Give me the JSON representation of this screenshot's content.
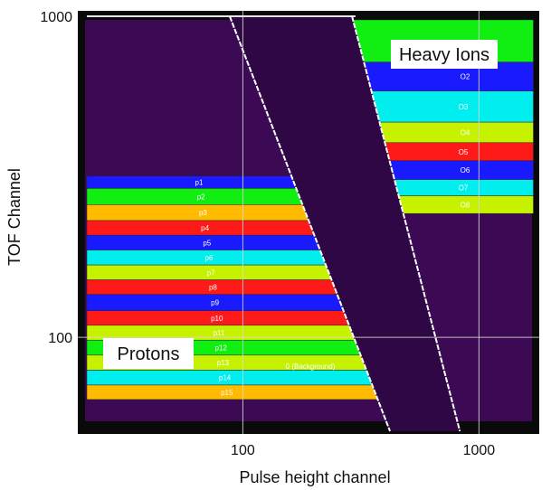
{
  "chart_data": {
    "type": "heatmap",
    "title": "",
    "xlabel": "Pulse height channel",
    "ylabel": "TOF Channel",
    "x_scale": "log",
    "y_scale": "log",
    "xlim": [
      20,
      1800
    ],
    "ylim": [
      50,
      1040
    ],
    "x_ticks": [
      {
        "value": 100,
        "label": "100"
      },
      {
        "value": 1000,
        "label": "1000"
      }
    ],
    "y_ticks": [
      {
        "value": 100,
        "label": "100"
      },
      {
        "value": 1000,
        "label": "1000"
      }
    ],
    "grid": true,
    "colors": {
      "background": "#3c0a55",
      "blue": "#1a1aff",
      "green": "#11ee11",
      "orange": "#ffbb00",
      "red": "#ff1a1a",
      "cyan": "#00eeee",
      "lime": "#c6f200",
      "line": "#ffffff"
    },
    "regions": [
      {
        "name": "Heavy Ions",
        "label": "Heavy Ions"
      },
      {
        "name": "Protons",
        "label": "Protons"
      }
    ],
    "background_label": "0 (Background)",
    "proton_bands": [
      {
        "label": "p1",
        "color": "blue",
        "tof_top": 318,
        "tof_bottom": 291,
        "ph_max": 178
      },
      {
        "label": "p2",
        "color": "green",
        "tof_top": 291,
        "tof_bottom": 259,
        "ph_max": 186
      },
      {
        "label": "p3",
        "color": "orange",
        "tof_top": 259,
        "tof_bottom": 231,
        "ph_max": 193
      },
      {
        "label": "p4",
        "color": "red",
        "tof_top": 231,
        "tof_bottom": 208,
        "ph_max": 202
      },
      {
        "label": "p5",
        "color": "blue",
        "tof_top": 208,
        "tof_bottom": 187,
        "ph_max": 210
      },
      {
        "label": "p6",
        "color": "cyan",
        "tof_top": 187,
        "tof_bottom": 168,
        "ph_max": 218
      },
      {
        "label": "p7",
        "color": "lime",
        "tof_top": 168,
        "tof_bottom": 151,
        "ph_max": 226
      },
      {
        "label": "p8",
        "color": "red",
        "tof_top": 151,
        "tof_bottom": 136,
        "ph_max": 236
      },
      {
        "label": "p9",
        "color": "blue",
        "tof_top": 136,
        "tof_bottom": 121,
        "ph_max": 244
      },
      {
        "label": "p10",
        "color": "red",
        "tof_top": 121,
        "tof_bottom": 109,
        "ph_max": 254
      },
      {
        "label": "p11",
        "color": "lime",
        "tof_top": 109,
        "tof_bottom": 98,
        "ph_max": 263
      },
      {
        "label": "p12",
        "color": "green",
        "tof_top": 98,
        "tof_bottom": 88,
        "ph_max": 273
      },
      {
        "label": "p13",
        "color": "lime",
        "tof_top": 88,
        "tof_bottom": 79,
        "ph_max": 283
      },
      {
        "label": "p14",
        "color": "cyan",
        "tof_top": 79,
        "tof_bottom": 71,
        "ph_max": 294
      },
      {
        "label": "p15",
        "color": "orange",
        "tof_top": 71,
        "tof_bottom": 64,
        "ph_max": 306
      }
    ],
    "heavy_ion_bands": [
      {
        "label": "",
        "color": "green",
        "tof_top": 975,
        "tof_bottom": 720
      },
      {
        "label": "O2",
        "color": "blue",
        "tof_top": 720,
        "tof_bottom": 585
      },
      {
        "label": "O3",
        "color": "cyan",
        "tof_top": 585,
        "tof_bottom": 468
      },
      {
        "label": "O4",
        "color": "lime",
        "tof_top": 468,
        "tof_bottom": 404
      },
      {
        "label": "O5",
        "color": "red",
        "tof_top": 404,
        "tof_bottom": 355
      },
      {
        "label": "O6",
        "color": "blue",
        "tof_top": 355,
        "tof_bottom": 310
      },
      {
        "label": "O7",
        "color": "cyan",
        "tof_top": 310,
        "tof_bottom": 276
      },
      {
        "label": "O8",
        "color": "lime",
        "tof_top": 276,
        "tof_bottom": 243
      }
    ],
    "heavy_ion_ph_max": 1700,
    "boundary_lines": [
      {
        "points": [
          [
            88,
            1000
          ],
          [
            420,
            51
          ]
        ]
      },
      {
        "points": [
          [
            290,
            1000
          ],
          [
            830,
            51
          ]
        ]
      }
    ],
    "grid_lines_x": [
      100,
      1000
    ],
    "grid_lines_y": [
      100
    ]
  }
}
